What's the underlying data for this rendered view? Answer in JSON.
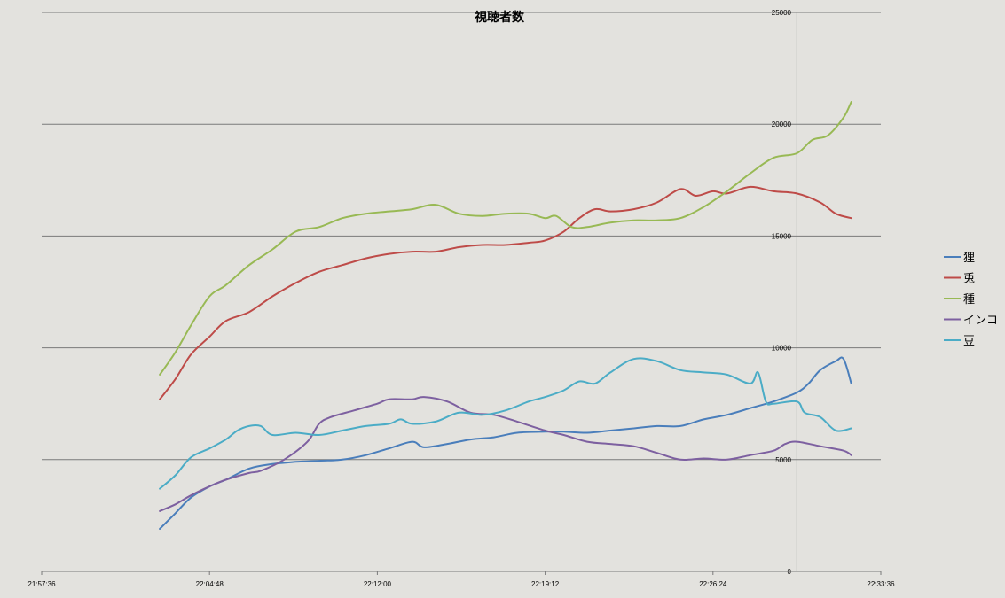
{
  "chart_data": {
    "type": "line",
    "title": "視聴者数",
    "xlabel": "",
    "ylabel": "",
    "x_ticks": [
      "21:57:36",
      "22:04:48",
      "22:12:00",
      "22:19:12",
      "22:26:24",
      "22:33:36"
    ],
    "y_ticks": [
      "0",
      "5000",
      "10000",
      "15000",
      "20000",
      "25000"
    ],
    "xlim": [
      "21:57:36",
      "22:33:36"
    ],
    "ylim": [
      0,
      25000
    ],
    "y_axis_position": "right",
    "marker_line_time": "22:30:00",
    "grid": "horizontal",
    "legend_position": "right",
    "series": [
      {
        "name": "狸",
        "color": "#4a7ebb",
        "points": [
          [
            "22:02:40",
            1900
          ],
          [
            "22:03:20",
            2600
          ],
          [
            "22:04:00",
            3300
          ],
          [
            "22:04:48",
            3800
          ],
          [
            "22:05:30",
            4100
          ],
          [
            "22:06:30",
            4600
          ],
          [
            "22:07:30",
            4800
          ],
          [
            "22:08:30",
            4900
          ],
          [
            "22:09:30",
            4950
          ],
          [
            "22:10:30",
            5000
          ],
          [
            "22:11:30",
            5200
          ],
          [
            "22:12:30",
            5500
          ],
          [
            "22:13:30",
            5800
          ],
          [
            "22:14:00",
            5550
          ],
          [
            "22:15:00",
            5700
          ],
          [
            "22:16:00",
            5900
          ],
          [
            "22:17:00",
            6000
          ],
          [
            "22:18:00",
            6200
          ],
          [
            "22:19:12",
            6250
          ],
          [
            "22:20:00",
            6250
          ],
          [
            "22:21:00",
            6200
          ],
          [
            "22:22:00",
            6300
          ],
          [
            "22:23:00",
            6400
          ],
          [
            "22:24:00",
            6500
          ],
          [
            "22:25:00",
            6500
          ],
          [
            "22:26:00",
            6800
          ],
          [
            "22:27:00",
            7000
          ],
          [
            "22:28:00",
            7300
          ],
          [
            "22:29:00",
            7600
          ],
          [
            "22:30:00",
            8000
          ],
          [
            "22:30:30",
            8400
          ],
          [
            "22:31:00",
            9000
          ],
          [
            "22:31:40",
            9400
          ],
          [
            "22:32:00",
            9500
          ],
          [
            "22:32:20",
            8400
          ]
        ]
      },
      {
        "name": "兎",
        "color": "#be4b48",
        "points": [
          [
            "22:02:40",
            7700
          ],
          [
            "22:03:20",
            8600
          ],
          [
            "22:04:00",
            9700
          ],
          [
            "22:04:48",
            10500
          ],
          [
            "22:05:30",
            11200
          ],
          [
            "22:06:30",
            11600
          ],
          [
            "22:07:30",
            12300
          ],
          [
            "22:08:30",
            12900
          ],
          [
            "22:09:30",
            13400
          ],
          [
            "22:10:30",
            13700
          ],
          [
            "22:11:30",
            14000
          ],
          [
            "22:12:30",
            14200
          ],
          [
            "22:13:30",
            14300
          ],
          [
            "22:14:30",
            14300
          ],
          [
            "22:15:30",
            14500
          ],
          [
            "22:16:30",
            14600
          ],
          [
            "22:17:30",
            14600
          ],
          [
            "22:18:30",
            14700
          ],
          [
            "22:19:12",
            14800
          ],
          [
            "22:20:00",
            15200
          ],
          [
            "22:20:40",
            15800
          ],
          [
            "22:21:20",
            16200
          ],
          [
            "22:22:00",
            16100
          ],
          [
            "22:23:00",
            16200
          ],
          [
            "22:24:00",
            16500
          ],
          [
            "22:25:00",
            17100
          ],
          [
            "22:25:40",
            16800
          ],
          [
            "22:26:24",
            17000
          ],
          [
            "22:27:00",
            16900
          ],
          [
            "22:28:00",
            17200
          ],
          [
            "22:29:00",
            17000
          ],
          [
            "22:30:00",
            16900
          ],
          [
            "22:31:00",
            16500
          ],
          [
            "22:31:40",
            16000
          ],
          [
            "22:32:20",
            15800
          ]
        ]
      },
      {
        "name": "種",
        "color": "#98b954",
        "points": [
          [
            "22:02:40",
            8800
          ],
          [
            "22:03:20",
            9800
          ],
          [
            "22:04:00",
            11000
          ],
          [
            "22:04:48",
            12300
          ],
          [
            "22:05:30",
            12800
          ],
          [
            "22:06:30",
            13700
          ],
          [
            "22:07:30",
            14400
          ],
          [
            "22:08:30",
            15200
          ],
          [
            "22:09:30",
            15400
          ],
          [
            "22:10:30",
            15800
          ],
          [
            "22:11:30",
            16000
          ],
          [
            "22:12:30",
            16100
          ],
          [
            "22:13:30",
            16200
          ],
          [
            "22:14:30",
            16400
          ],
          [
            "22:15:30",
            16000
          ],
          [
            "22:16:30",
            15900
          ],
          [
            "22:17:30",
            16000
          ],
          [
            "22:18:30",
            16000
          ],
          [
            "22:19:12",
            15800
          ],
          [
            "22:19:40",
            15900
          ],
          [
            "22:20:20",
            15400
          ],
          [
            "22:21:00",
            15400
          ],
          [
            "22:22:00",
            15600
          ],
          [
            "22:23:00",
            15700
          ],
          [
            "22:24:00",
            15700
          ],
          [
            "22:25:00",
            15800
          ],
          [
            "22:26:00",
            16300
          ],
          [
            "22:27:00",
            17000
          ],
          [
            "22:28:00",
            17800
          ],
          [
            "22:29:00",
            18500
          ],
          [
            "22:30:00",
            18700
          ],
          [
            "22:30:40",
            19300
          ],
          [
            "22:31:20",
            19500
          ],
          [
            "22:32:00",
            20300
          ],
          [
            "22:32:20",
            21000
          ]
        ]
      },
      {
        "name": "インコ",
        "color": "#7d60a0",
        "points": [
          [
            "22:02:40",
            2700
          ],
          [
            "22:03:20",
            3000
          ],
          [
            "22:04:00",
            3400
          ],
          [
            "22:04:48",
            3800
          ],
          [
            "22:05:30",
            4100
          ],
          [
            "22:06:30",
            4400
          ],
          [
            "22:07:00",
            4500
          ],
          [
            "22:08:00",
            5000
          ],
          [
            "22:09:00",
            5800
          ],
          [
            "22:09:30",
            6600
          ],
          [
            "22:10:00",
            6900
          ],
          [
            "22:11:00",
            7200
          ],
          [
            "22:12:00",
            7500
          ],
          [
            "22:12:30",
            7700
          ],
          [
            "22:13:30",
            7700
          ],
          [
            "22:14:00",
            7800
          ],
          [
            "22:15:00",
            7600
          ],
          [
            "22:16:00",
            7100
          ],
          [
            "22:17:00",
            7000
          ],
          [
            "22:18:00",
            6700
          ],
          [
            "22:19:12",
            6300
          ],
          [
            "22:20:00",
            6100
          ],
          [
            "22:21:00",
            5800
          ],
          [
            "22:22:00",
            5700
          ],
          [
            "22:23:00",
            5600
          ],
          [
            "22:24:00",
            5300
          ],
          [
            "22:25:00",
            5000
          ],
          [
            "22:26:00",
            5050
          ],
          [
            "22:27:00",
            5000
          ],
          [
            "22:28:00",
            5200
          ],
          [
            "22:29:00",
            5400
          ],
          [
            "22:29:30",
            5700
          ],
          [
            "22:30:00",
            5800
          ],
          [
            "22:31:00",
            5600
          ],
          [
            "22:32:00",
            5400
          ],
          [
            "22:32:20",
            5200
          ]
        ]
      },
      {
        "name": "豆",
        "color": "#4bacc6",
        "points": [
          [
            "22:02:40",
            3700
          ],
          [
            "22:03:20",
            4300
          ],
          [
            "22:04:00",
            5100
          ],
          [
            "22:04:48",
            5500
          ],
          [
            "22:05:30",
            5900
          ],
          [
            "22:06:00",
            6300
          ],
          [
            "22:06:30",
            6500
          ],
          [
            "22:07:00",
            6500
          ],
          [
            "22:07:30",
            6100
          ],
          [
            "22:08:30",
            6200
          ],
          [
            "22:09:30",
            6100
          ],
          [
            "22:10:30",
            6300
          ],
          [
            "22:11:30",
            6500
          ],
          [
            "22:12:30",
            6600
          ],
          [
            "22:13:00",
            6800
          ],
          [
            "22:13:30",
            6600
          ],
          [
            "22:14:30",
            6700
          ],
          [
            "22:15:30",
            7100
          ],
          [
            "22:16:30",
            7000
          ],
          [
            "22:17:30",
            7200
          ],
          [
            "22:18:30",
            7600
          ],
          [
            "22:19:12",
            7800
          ],
          [
            "22:20:00",
            8100
          ],
          [
            "22:20:40",
            8500
          ],
          [
            "22:21:20",
            8400
          ],
          [
            "22:22:00",
            8900
          ],
          [
            "22:23:00",
            9500
          ],
          [
            "22:24:00",
            9400
          ],
          [
            "22:25:00",
            9000
          ],
          [
            "22:26:00",
            8900
          ],
          [
            "22:27:00",
            8800
          ],
          [
            "22:28:00",
            8400
          ],
          [
            "22:28:20",
            8900
          ],
          [
            "22:28:40",
            7600
          ],
          [
            "22:29:00",
            7500
          ],
          [
            "22:30:00",
            7600
          ],
          [
            "22:30:20",
            7100
          ],
          [
            "22:31:00",
            6900
          ],
          [
            "22:31:40",
            6300
          ],
          [
            "22:32:20",
            6400
          ]
        ]
      }
    ]
  }
}
